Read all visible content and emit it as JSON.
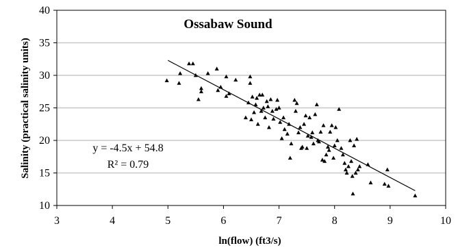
{
  "chart_data": {
    "type": "scatter",
    "title": "Ossabaw Sound",
    "xlabel": "ln(flow) (ft3/s)",
    "ylabel": "Salinity (practical salinity units)",
    "xlim": [
      3,
      10
    ],
    "ylim": [
      10,
      40
    ],
    "xticks": [
      3,
      4,
      5,
      6,
      7,
      8,
      9,
      10
    ],
    "yticks": [
      10,
      15,
      20,
      25,
      30,
      35,
      40
    ],
    "grid": "horizontal",
    "marker": "triangle",
    "trendline": {
      "slope": -4.5,
      "intercept": 54.8,
      "x_range": [
        5.0,
        9.45
      ],
      "equation_label": "y = -4.5x + 54.8",
      "r2_label": "R² = 0.79"
    },
    "points": [
      [
        4.98,
        29.2
      ],
      [
        5.2,
        28.8
      ],
      [
        5.22,
        30.3
      ],
      [
        5.38,
        31.8
      ],
      [
        5.45,
        31.8
      ],
      [
        5.5,
        30.0
      ],
      [
        5.55,
        26.3
      ],
      [
        5.6,
        27.5
      ],
      [
        5.6,
        28.0
      ],
      [
        5.72,
        30.3
      ],
      [
        5.88,
        31.0
      ],
      [
        5.9,
        27.7
      ],
      [
        5.95,
        28.2
      ],
      [
        6.05,
        26.8
      ],
      [
        6.05,
        29.8
      ],
      [
        6.1,
        27.2
      ],
      [
        6.22,
        29.3
      ],
      [
        6.4,
        23.5
      ],
      [
        6.45,
        25.8
      ],
      [
        6.48,
        28.8
      ],
      [
        6.48,
        29.8
      ],
      [
        6.5,
        23.2
      ],
      [
        6.52,
        26.7
      ],
      [
        6.55,
        24.3
      ],
      [
        6.58,
        25.5
      ],
      [
        6.6,
        26.5
      ],
      [
        6.62,
        22.5
      ],
      [
        6.65,
        27.0
      ],
      [
        6.68,
        24.5
      ],
      [
        6.7,
        27.0
      ],
      [
        6.72,
        25.0
      ],
      [
        6.75,
        23.5
      ],
      [
        6.78,
        26.0
      ],
      [
        6.8,
        25.2
      ],
      [
        6.82,
        22.0
      ],
      [
        6.85,
        26.3
      ],
      [
        6.88,
        24.5
      ],
      [
        6.9,
        23.3
      ],
      [
        6.95,
        24.8
      ],
      [
        6.97,
        26.2
      ],
      [
        7.0,
        25.0
      ],
      [
        7.02,
        22.8
      ],
      [
        7.05,
        20.3
      ],
      [
        7.08,
        23.5
      ],
      [
        7.1,
        21.7
      ],
      [
        7.15,
        21.0
      ],
      [
        7.18,
        22.5
      ],
      [
        7.2,
        17.3
      ],
      [
        7.22,
        19.5
      ],
      [
        7.28,
        26.2
      ],
      [
        7.3,
        24.5
      ],
      [
        7.32,
        25.7
      ],
      [
        7.35,
        21.2
      ],
      [
        7.38,
        22.0
      ],
      [
        7.4,
        18.8
      ],
      [
        7.42,
        19.0
      ],
      [
        7.45,
        22.5
      ],
      [
        7.48,
        23.8
      ],
      [
        7.5,
        18.8
      ],
      [
        7.52,
        20.7
      ],
      [
        7.55,
        23.5
      ],
      [
        7.58,
        20.5
      ],
      [
        7.6,
        21.2
      ],
      [
        7.62,
        19.5
      ],
      [
        7.65,
        24.0
      ],
      [
        7.68,
        25.5
      ],
      [
        7.7,
        20.0
      ],
      [
        7.72,
        19.8
      ],
      [
        7.75,
        21.3
      ],
      [
        7.78,
        17.0
      ],
      [
        7.8,
        22.3
      ],
      [
        7.82,
        16.8
      ],
      [
        7.85,
        17.8
      ],
      [
        7.88,
        19.0
      ],
      [
        7.9,
        18.5
      ],
      [
        7.92,
        21.3
      ],
      [
        7.95,
        22.3
      ],
      [
        7.98,
        17.3
      ],
      [
        8.0,
        19.2
      ],
      [
        8.02,
        22.0
      ],
      [
        8.05,
        20.0
      ],
      [
        8.08,
        24.8
      ],
      [
        8.12,
        18.8
      ],
      [
        8.15,
        17.8
      ],
      [
        8.18,
        16.5
      ],
      [
        8.2,
        15.5
      ],
      [
        8.22,
        15.0
      ],
      [
        8.25,
        16.0
      ],
      [
        8.28,
        20.0
      ],
      [
        8.3,
        16.8
      ],
      [
        8.32,
        14.5
      ],
      [
        8.35,
        19.2
      ],
      [
        8.38,
        15.0
      ],
      [
        8.4,
        20.2
      ],
      [
        8.42,
        15.5
      ],
      [
        8.45,
        16.0
      ],
      [
        8.6,
        16.3
      ],
      [
        8.65,
        13.5
      ],
      [
        8.9,
        13.3
      ],
      [
        8.95,
        15.5
      ],
      [
        8.97,
        13.0
      ],
      [
        9.45,
        11.5
      ],
      [
        8.33,
        11.8
      ]
    ],
    "point_color": "#000000",
    "grid_color": "#c8c8c8"
  }
}
